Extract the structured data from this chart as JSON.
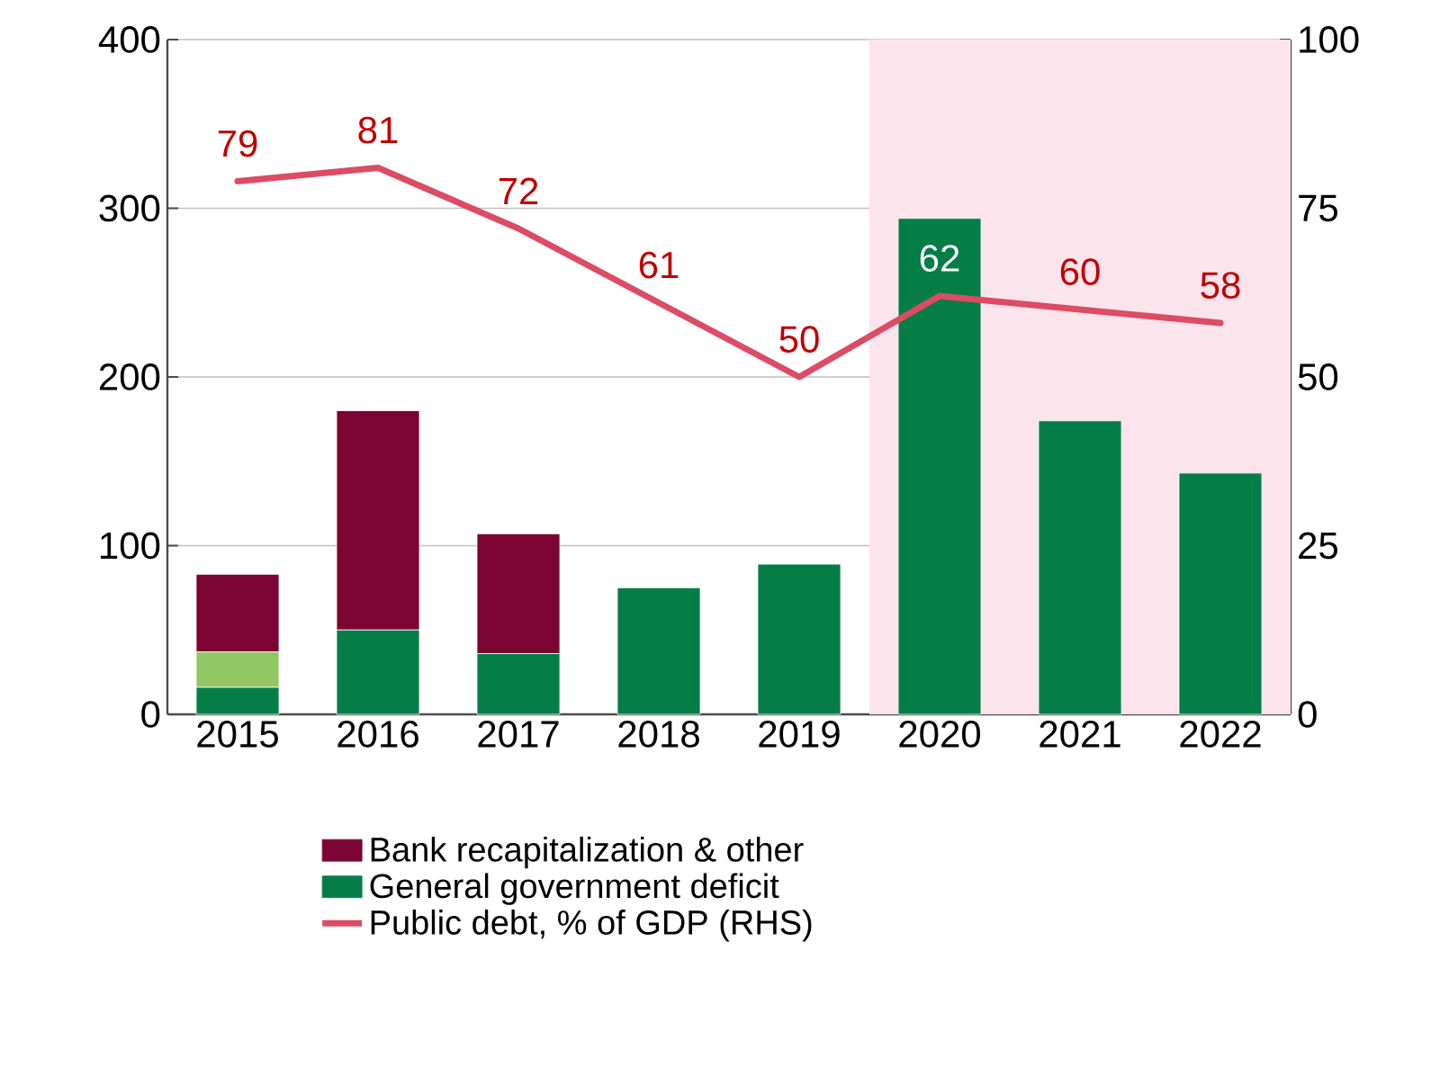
{
  "chart_data": {
    "type": "bar",
    "stacked": true,
    "categories": [
      "2015",
      "2016",
      "2017",
      "2018",
      "2019",
      "2020",
      "2021",
      "2022"
    ],
    "series": [
      {
        "name": "General government deficit",
        "color": "#057d46",
        "values": [
          16,
          50,
          36,
          75,
          89,
          294,
          174,
          143
        ]
      },
      {
        "color": "#92c864",
        "values": [
          21,
          0,
          0,
          0,
          0,
          0,
          0,
          0
        ]
      },
      {
        "name": "Bank recapitalization & other",
        "color": "#7b0432",
        "values": [
          46,
          130,
          71,
          0,
          0,
          0,
          0,
          0
        ]
      },
      {
        "name": "Public debt, % of GDP (RHS)",
        "type": "line",
        "axis": "y2",
        "color": "#dc4c64",
        "values": [
          79,
          81,
          72,
          61,
          50,
          62,
          60,
          58
        ],
        "value_labels": [
          "79",
          "81",
          "72",
          "61",
          "50",
          "62",
          "60",
          "58"
        ]
      }
    ],
    "ylim": [
      0,
      400
    ],
    "yticks": [
      0,
      100,
      200,
      300,
      400
    ],
    "y2lim": [
      0,
      100
    ],
    "y2ticks": [
      0,
      25,
      50,
      75,
      100
    ],
    "grid": "y",
    "legend": "bottom",
    "marker": "none",
    "bands": [
      {
        "axis": "x",
        "from": "2020",
        "to": "2022",
        "color": "#fce4ec"
      }
    ]
  }
}
